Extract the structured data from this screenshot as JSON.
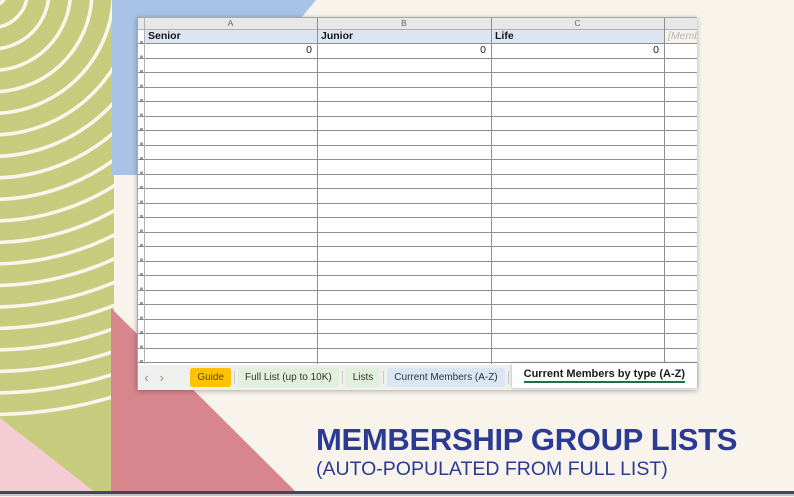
{
  "page": {
    "title": "MEMBERSHIP GROUP LISTS",
    "subtitle": "(AUTO-POPULATED FROM FULL LIST)"
  },
  "spreadsheet": {
    "column_letters": [
      "A",
      "B",
      "C"
    ],
    "header_row": {
      "cells": [
        "Senior",
        "Junior",
        "Life"
      ],
      "partial_cell": "[Memb",
      "fill_color": "#dce6f1"
    },
    "value_row": [
      "0",
      "0",
      "0"
    ],
    "empty_row_count": 21,
    "nav": {
      "prev_icon": "‹",
      "next_icon": "›"
    },
    "tabs": [
      {
        "label": "Guide",
        "color": "#ffc103",
        "text_color": "#5f4700",
        "active": false
      },
      {
        "label": "Full List (up to 10K)",
        "color": "#e2efda",
        "text_color": "#333333",
        "active": false
      },
      {
        "label": "Lists",
        "color": "#e2efda",
        "text_color": "#333333",
        "active": false
      },
      {
        "label": "Current Members (A-Z)",
        "color": "#d9e7f5",
        "text_color": "#333333",
        "active": false
      },
      {
        "label": "Current Members by type (A-Z)",
        "color": "#ffffff",
        "text_color": "#1a1a1a",
        "active": true,
        "underline_color": "#1e7145"
      }
    ]
  },
  "colors": {
    "cream_background": "#f8f4ec",
    "olive_shape": "#c7cb7d",
    "blue_shape": "#a9c3e6",
    "rose_shape": "#d6868c",
    "pink_shape": "#f4cdd4",
    "navy_strip": "#3f4468",
    "title_text": "#2b3a94",
    "header_fill": "#dce6f1",
    "active_tab_underline": "#1e7145",
    "guide_tab_fill": "#ffc103"
  }
}
